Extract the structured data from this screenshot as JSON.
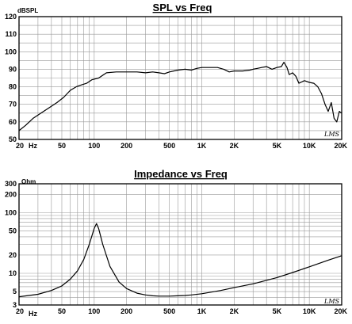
{
  "chart_data": [
    {
      "type": "line",
      "title": "SPL vs Freq",
      "ylabel": "dBSPL",
      "yscale": "linear",
      "xscale": "log",
      "xlim": [
        20,
        20000
      ],
      "ylim": [
        50,
        120
      ],
      "yticks": [
        "50",
        "60",
        "70",
        "80",
        "90",
        "100",
        "110",
        "120"
      ],
      "xticks": [
        {
          "v": 20,
          "label": "20"
        },
        {
          "v": 50,
          "label": "50"
        },
        {
          "v": 100,
          "label": "100"
        },
        {
          "v": 200,
          "label": "200"
        },
        {
          "v": 500,
          "label": "500"
        },
        {
          "v": 1000,
          "label": "1K"
        },
        {
          "v": 2000,
          "label": "2K"
        },
        {
          "v": 5000,
          "label": "5K"
        },
        {
          "v": 10000,
          "label": "10K"
        },
        {
          "v": 20000,
          "label": "20K"
        }
      ],
      "xunit": "Hz",
      "signature": "LMS",
      "grid": true,
      "series": [
        {
          "x": [
            20,
            23,
            27,
            32,
            38,
            45,
            52,
            60,
            68,
            75,
            85,
            95,
            110,
            130,
            160,
            200,
            250,
            300,
            350,
            400,
            450,
            500,
            600,
            700,
            800,
            900,
            1000,
            1200,
            1400,
            1600,
            1800,
            2000,
            2400,
            2800,
            3000,
            3300,
            3600,
            4000,
            4500,
            5000,
            5500,
            5800,
            6200,
            6500,
            7000,
            7500,
            8000,
            9000,
            10000,
            11000,
            12000,
            13000,
            14000,
            15000,
            16000,
            17000,
            18000,
            19000,
            20000
          ],
          "y": [
            55,
            58,
            62,
            65,
            68,
            71,
            74,
            78,
            80,
            81,
            82,
            84,
            85,
            88,
            88.5,
            88.5,
            88.5,
            88,
            88.5,
            88,
            87.5,
            88.5,
            89.5,
            90,
            89.5,
            90.5,
            91,
            91,
            91,
            90,
            88.5,
            89,
            89,
            89.5,
            90,
            90.5,
            91,
            91.5,
            90,
            91,
            91.5,
            94,
            91,
            87,
            88,
            86,
            82,
            83.5,
            82.5,
            82,
            80,
            76,
            70,
            66,
            71,
            62,
            60,
            66,
            65
          ]
        }
      ]
    },
    {
      "type": "line",
      "title": "Impedance vs Freq",
      "ylabel": "Ohm",
      "yscale": "log",
      "xscale": "log",
      "xlim": [
        20,
        20000
      ],
      "ylim": [
        3,
        300
      ],
      "yticks": [
        "3",
        "5",
        "10",
        "20",
        "50",
        "100",
        "200",
        "300"
      ],
      "xticks": [
        {
          "v": 20,
          "label": "20"
        },
        {
          "v": 50,
          "label": "50"
        },
        {
          "v": 100,
          "label": "100"
        },
        {
          "v": 200,
          "label": "200"
        },
        {
          "v": 500,
          "label": "500"
        },
        {
          "v": 1000,
          "label": "1K"
        },
        {
          "v": 2000,
          "label": "2K"
        },
        {
          "v": 5000,
          "label": "5K"
        },
        {
          "v": 10000,
          "label": "10K"
        },
        {
          "v": 20000,
          "label": "20K"
        }
      ],
      "xunit": "Hz",
      "signature": "LMS",
      "grid": true,
      "series": [
        {
          "x": [
            20,
            30,
            40,
            50,
            60,
            70,
            80,
            90,
            100,
            105,
            110,
            120,
            140,
            170,
            200,
            250,
            300,
            350,
            400,
            450,
            500,
            600,
            700,
            800,
            1000,
            1500,
            2000,
            3000,
            5000,
            7000,
            10000,
            15000,
            20000
          ],
          "y": [
            4.1,
            4.5,
            5.2,
            6.2,
            8,
            11,
            17,
            30,
            55,
            66,
            55,
            30,
            13,
            7.2,
            5.6,
            4.7,
            4.4,
            4.25,
            4.2,
            4.2,
            4.2,
            4.25,
            4.3,
            4.4,
            4.6,
            5.2,
            5.8,
            6.7,
            8.5,
            10.3,
            12.8,
            16.5,
            19.5
          ]
        }
      ]
    }
  ]
}
